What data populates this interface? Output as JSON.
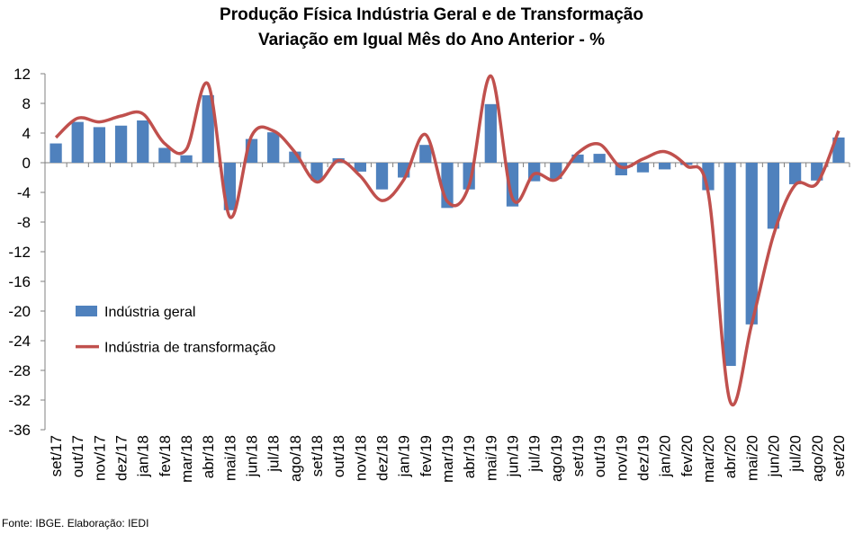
{
  "chart_data": {
    "type": "bar",
    "title": "Produção Física Indústria Geral e de Transformação",
    "subtitle": "Variação em Igual Mês do Ano Anterior - %",
    "categories": [
      "set/17",
      "out/17",
      "nov/17",
      "dez/17",
      "jan/18",
      "fev/18",
      "mar/18",
      "abr/18",
      "mai/18",
      "jun/18",
      "jul/18",
      "ago/18",
      "set/18",
      "out/18",
      "nov/18",
      "dez/18",
      "jan/19",
      "fev/19",
      "mar/19",
      "abr/19",
      "mai/19",
      "jun/19",
      "jul/19",
      "ago/19",
      "set/19",
      "out/19",
      "nov/19",
      "dez/19",
      "jan/20",
      "fev/20",
      "mar/20",
      "abr/20",
      "mai/20",
      "jun/20",
      "jul/20",
      "ago/20",
      "set/20"
    ],
    "series": [
      {
        "name": "Indústria geral",
        "kind": "bar",
        "color": "#4F81BD",
        "values": [
          2.6,
          5.5,
          4.8,
          5.0,
          5.7,
          2.0,
          1.0,
          9.1,
          -6.4,
          3.2,
          4.1,
          1.5,
          -2.4,
          0.6,
          -1.2,
          -3.6,
          -2.0,
          2.4,
          -6.1,
          -3.6,
          7.9,
          -5.9,
          -2.5,
          -2.2,
          1.1,
          1.2,
          -1.7,
          -1.3,
          -0.9,
          -0.3,
          -3.7,
          -27.4,
          -21.8,
          -8.9,
          -2.9,
          -2.4,
          3.4
        ]
      },
      {
        "name": "Indústria de transformação",
        "kind": "line",
        "color": "#C0504D",
        "values": [
          3.4,
          6.0,
          5.5,
          6.3,
          6.6,
          2.6,
          1.8,
          10.6,
          -7.3,
          3.6,
          4.3,
          1.4,
          -2.6,
          0.3,
          -1.8,
          -5.1,
          -2.3,
          3.8,
          -5.2,
          -3.1,
          11.7,
          -4.8,
          -1.5,
          -2.3,
          1.3,
          2.5,
          -0.6,
          0.5,
          1.5,
          -0.4,
          -4.0,
          -32.1,
          -21.8,
          -9.8,
          -3.0,
          -2.8,
          4.3
        ]
      }
    ],
    "ylim": [
      -36,
      12
    ],
    "yticks": [
      12,
      8,
      4,
      0,
      -4,
      -8,
      -12,
      -16,
      -20,
      -24,
      -28,
      -32,
      -36
    ],
    "legend": "left-middle",
    "grid": false
  },
  "source": "Fonte: IBGE. Elaboração: IEDI"
}
